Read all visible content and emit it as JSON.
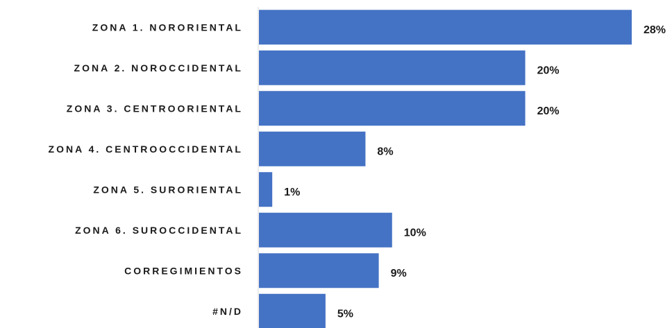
{
  "chart_data": {
    "type": "bar",
    "orientation": "horizontal",
    "categories": [
      "ZONA 1. NORORIENTAL",
      "ZONA 2. NOROCCIDENTAL",
      "ZONA 3. CENTROORIENTAL",
      "ZONA 4. CENTROOCCIDENTAL",
      "ZONA 5. SURORIENTAL",
      "ZONA 6. SUROCCIDENTAL",
      "CORREGIMIENTOS",
      "#N/D"
    ],
    "values": [
      28,
      20,
      20,
      8,
      1,
      10,
      9,
      5
    ],
    "data_labels": [
      "28%",
      "20%",
      "20%",
      "8%",
      "1%",
      "10%",
      "9%",
      "5%"
    ],
    "value_unit": "%",
    "title": "",
    "xlabel": "",
    "ylabel": "",
    "xlim": [
      0,
      28
    ],
    "grid": false,
    "legend": "none",
    "colors": {
      "bar": "#4472C4",
      "axis": "#d9d9d9",
      "text": "#1a1a1a"
    }
  }
}
